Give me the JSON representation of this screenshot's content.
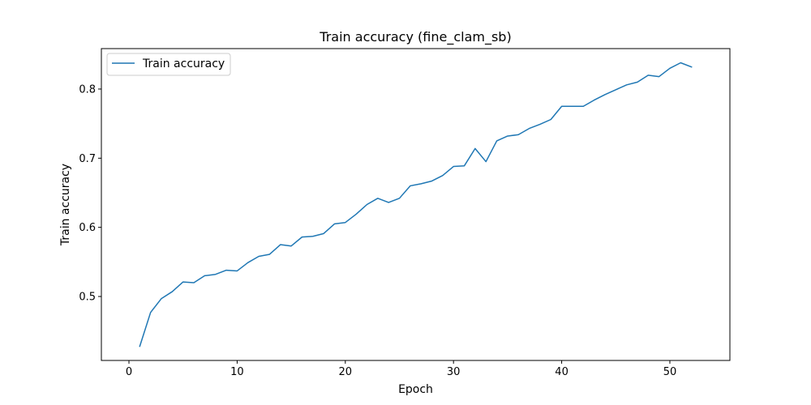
{
  "chart_data": {
    "type": "line",
    "title": "Train accuracy (fine_clam_sb)",
    "xlabel": "Epoch",
    "ylabel": "Train accuracy",
    "xlim": [
      -2.55,
      55.55
    ],
    "ylim": [
      0.4075,
      0.8585
    ],
    "xticks": [
      0,
      10,
      20,
      30,
      40,
      50
    ],
    "yticks": [
      0.5,
      0.6,
      0.7,
      0.8
    ],
    "grid": false,
    "legend": "top-left",
    "series": [
      {
        "name": "Train accuracy",
        "color": "#1f77b4",
        "x": [
          1,
          2,
          3,
          4,
          5,
          6,
          7,
          8,
          9,
          10,
          11,
          12,
          13,
          14,
          15,
          16,
          17,
          18,
          19,
          20,
          21,
          22,
          23,
          24,
          25,
          26,
          27,
          28,
          29,
          30,
          31,
          32,
          33,
          34,
          35,
          36,
          37,
          38,
          39,
          40,
          41,
          42,
          43,
          44,
          45,
          46,
          47,
          48,
          49,
          50,
          51,
          52
        ],
        "y": [
          0.428,
          0.477,
          0.497,
          0.507,
          0.521,
          0.52,
          0.53,
          0.532,
          0.538,
          0.537,
          0.549,
          0.558,
          0.561,
          0.575,
          0.573,
          0.586,
          0.587,
          0.591,
          0.605,
          0.607,
          0.619,
          0.633,
          0.642,
          0.636,
          0.642,
          0.66,
          0.663,
          0.667,
          0.675,
          0.688,
          0.689,
          0.714,
          0.695,
          0.725,
          0.732,
          0.734,
          0.743,
          0.749,
          0.756,
          0.775,
          0.775,
          0.775,
          0.784,
          0.792,
          0.799,
          0.806,
          0.81,
          0.82,
          0.818,
          0.83,
          0.838,
          0.832
        ]
      }
    ]
  }
}
